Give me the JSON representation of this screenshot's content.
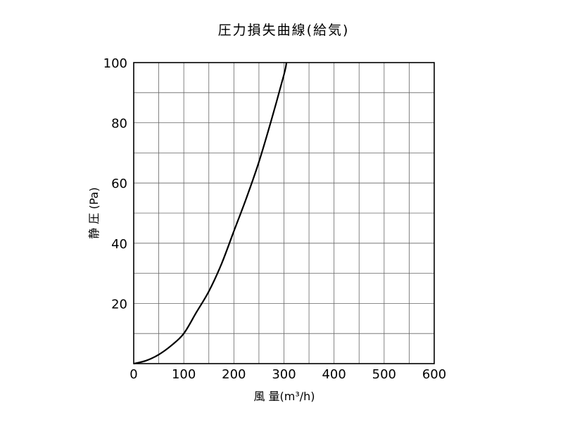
{
  "chart_data": {
    "type": "line",
    "title": "圧力損失曲線(給気)",
    "xlabel": "風 量(m³/h)",
    "ylabel": "静 圧 (Pa)",
    "xlim": [
      0,
      600
    ],
    "ylim": [
      0,
      100
    ],
    "x_ticks": [
      "0",
      "100",
      "200",
      "300",
      "400",
      "500",
      "600"
    ],
    "y_ticks": [
      "20",
      "40",
      "60",
      "80",
      "100"
    ],
    "grid": true,
    "legend": "none",
    "series": [
      {
        "x": [
          0,
          25,
          50,
          75,
          100,
          125,
          150,
          175,
          200,
          225,
          250,
          275,
          300,
          305
        ],
        "y": [
          0,
          1,
          3,
          6,
          10,
          17,
          24,
          33,
          44,
          55,
          67,
          81,
          96,
          100
        ]
      }
    ],
    "colors": {
      "line": "#000000",
      "grid": "#666666",
      "frame": "#000000"
    }
  }
}
